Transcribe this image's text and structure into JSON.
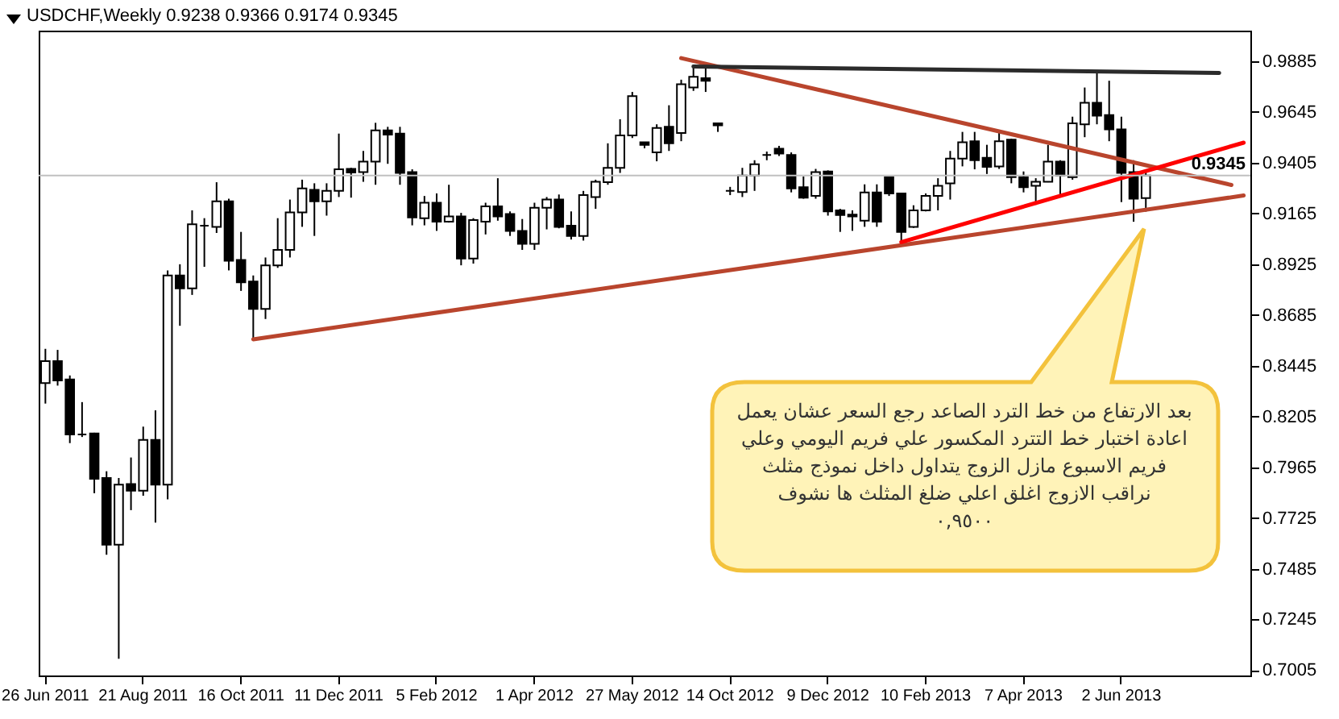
{
  "chart_data": {
    "type": "candlestick",
    "title": "USDCHF,Weekly  0.9238 0.9366 0.9174 0.9345",
    "categories": [
      "26 Jun 2011",
      null,
      null,
      null,
      null,
      null,
      null,
      null,
      "21 Aug 2011",
      null,
      null,
      null,
      null,
      null,
      null,
      null,
      "16 Oct 2011",
      null,
      null,
      null,
      null,
      null,
      null,
      null,
      "11 Dec 2011",
      null,
      null,
      null,
      null,
      null,
      null,
      null,
      "5 Feb 2012",
      null,
      null,
      null,
      null,
      null,
      null,
      null,
      "1 Apr 2012",
      null,
      null,
      null,
      null,
      null,
      null,
      null,
      "27 May 2012",
      null,
      null,
      null,
      null,
      null,
      null,
      null,
      "14 Oct 2012",
      null,
      null,
      null,
      null,
      null,
      null,
      null,
      "9 Dec 2012",
      null,
      null,
      null,
      null,
      null,
      null,
      null,
      "10 Feb 2013",
      null,
      null,
      null,
      null,
      null,
      null,
      null,
      "7 Apr 2013",
      null,
      null,
      null,
      null,
      null,
      null,
      null,
      "2 Jun 2013",
      null,
      null,
      null,
      null,
      null,
      null,
      null,
      null,
      null,
      null
    ],
    "ohlc": [
      [
        0.8363,
        0.8525,
        0.8266,
        0.8467
      ],
      [
        0.8467,
        0.852,
        0.8351,
        0.8375
      ],
      [
        0.838,
        0.8399,
        0.8079,
        0.812
      ],
      [
        0.812,
        0.8273,
        0.8108,
        0.812
      ],
      [
        0.8125,
        0.8128,
        0.7842,
        0.791
      ],
      [
        0.7914,
        0.7946,
        0.7551,
        0.7599
      ],
      [
        0.7599,
        0.7914,
        0.7059,
        0.7883
      ],
      [
        0.7885,
        0.8011,
        0.7762,
        0.7854
      ],
      [
        0.7854,
        0.8157,
        0.783,
        0.8094
      ],
      [
        0.8094,
        0.8234,
        0.7703,
        0.7883
      ],
      [
        0.7883,
        0.8896,
        0.7813,
        0.8872
      ],
      [
        0.8872,
        0.8925,
        0.8634,
        0.8811
      ],
      [
        0.8811,
        0.918,
        0.878,
        0.9114
      ],
      [
        0.9107,
        0.9143,
        0.8913,
        0.9107
      ],
      [
        0.9102,
        0.9313,
        0.9073,
        0.9223
      ],
      [
        0.9223,
        0.9235,
        0.8896,
        0.8942
      ],
      [
        0.8945,
        0.9078,
        0.8799,
        0.884
      ],
      [
        0.8843,
        0.8872,
        0.8569,
        0.8714
      ],
      [
        0.8714,
        0.8957,
        0.8666,
        0.892
      ],
      [
        0.892,
        0.9143,
        0.8908,
        0.8993
      ],
      [
        0.8993,
        0.9231,
        0.8957,
        0.917
      ],
      [
        0.917,
        0.9325,
        0.9102,
        0.9284
      ],
      [
        0.9277,
        0.9308,
        0.9059,
        0.9223
      ],
      [
        0.9223,
        0.9308,
        0.9155,
        0.9272
      ],
      [
        0.9272,
        0.9543,
        0.9243,
        0.9374
      ],
      [
        0.9376,
        0.9381,
        0.924,
        0.9359
      ],
      [
        0.9361,
        0.9461,
        0.9315,
        0.941
      ],
      [
        0.941,
        0.9594,
        0.9301,
        0.9558
      ],
      [
        0.9558,
        0.9575,
        0.94,
        0.9538
      ],
      [
        0.9543,
        0.9575,
        0.9301,
        0.9357
      ],
      [
        0.9361,
        0.9374,
        0.9109,
        0.9146
      ],
      [
        0.9143,
        0.9248,
        0.9109,
        0.9216
      ],
      [
        0.9216,
        0.926,
        0.9083,
        0.9126
      ],
      [
        0.9126,
        0.9301,
        0.9122,
        0.9151
      ],
      [
        0.9151,
        0.9168,
        0.892,
        0.8952
      ],
      [
        0.8952,
        0.9143,
        0.8928,
        0.9134
      ],
      [
        0.9126,
        0.9216,
        0.9066,
        0.9199
      ],
      [
        0.9199,
        0.9332,
        0.9131,
        0.9151
      ],
      [
        0.9163,
        0.9175,
        0.9059,
        0.9083
      ],
      [
        0.9083,
        0.9139,
        0.8993,
        0.9022
      ],
      [
        0.9022,
        0.9216,
        0.8993,
        0.9192
      ],
      [
        0.9192,
        0.9243,
        0.909,
        0.9231
      ],
      [
        0.9231,
        0.9255,
        0.9095,
        0.9102
      ],
      [
        0.9107,
        0.9175,
        0.9042,
        0.9059
      ],
      [
        0.9059,
        0.9272,
        0.9037,
        0.9252
      ],
      [
        0.9243,
        0.9325,
        0.9187,
        0.9315
      ],
      [
        0.9313,
        0.9497,
        0.9301,
        0.9381
      ],
      [
        0.9381,
        0.9611,
        0.9357,
        0.9534
      ],
      [
        0.9534,
        0.974,
        0.9522,
        0.972
      ],
      [
        0.9502,
        0.9503,
        0.9473,
        0.949
      ],
      [
        0.9454,
        0.9587,
        0.9412,
        0.957
      ],
      [
        0.9575,
        0.9677,
        0.9461,
        0.9497
      ],
      [
        0.9546,
        0.9798,
        0.9507,
        0.9776
      ],
      [
        0.9761,
        0.9866,
        0.9745,
        0.9812
      ],
      [
        0.9805,
        0.9858,
        0.974,
        0.9793
      ],
      [
        0.9592,
        0.9594,
        0.9551,
        0.9582
      ],
      [
        0.9272,
        0.9291,
        0.9252,
        0.9272
      ],
      [
        0.9267,
        0.9381,
        0.9243,
        0.9345
      ],
      [
        0.9345,
        0.9417,
        0.9272,
        0.9398
      ],
      [
        0.9442,
        0.9458,
        0.9417,
        0.9442
      ],
      [
        0.9471,
        0.9485,
        0.9437,
        0.9449
      ],
      [
        0.9442,
        0.9454,
        0.9265,
        0.9284
      ],
      [
        0.9289,
        0.934,
        0.9235,
        0.924
      ],
      [
        0.9248,
        0.9376,
        0.9235,
        0.9361
      ],
      [
        0.9364,
        0.9369,
        0.9155,
        0.9175
      ],
      [
        0.918,
        0.9187,
        0.9078,
        0.9158
      ],
      [
        0.916,
        0.918,
        0.9083,
        0.9151
      ],
      [
        0.9131,
        0.9303,
        0.9102,
        0.9265
      ],
      [
        0.9265,
        0.9303,
        0.9102,
        0.9126
      ],
      [
        0.9337,
        0.934,
        0.9248,
        0.926
      ],
      [
        0.926,
        0.9262,
        0.9022,
        0.9078
      ],
      [
        0.9102,
        0.9204,
        0.9097,
        0.918
      ],
      [
        0.918,
        0.926,
        0.9175,
        0.9248
      ],
      [
        0.9248,
        0.9332,
        0.918,
        0.9296
      ],
      [
        0.9308,
        0.9461,
        0.9231,
        0.9425
      ],
      [
        0.9425,
        0.9551,
        0.9388,
        0.9502
      ],
      [
        0.9507,
        0.9551,
        0.9374,
        0.9417
      ],
      [
        0.9429,
        0.949,
        0.9352,
        0.9386
      ],
      [
        0.9388,
        0.9551,
        0.9376,
        0.9507
      ],
      [
        0.9514,
        0.9519,
        0.9308,
        0.9337
      ],
      [
        0.9337,
        0.9364,
        0.9265,
        0.9289
      ],
      [
        0.9296,
        0.9332,
        0.9206,
        0.9315
      ],
      [
        0.9315,
        0.949,
        0.9313,
        0.941
      ],
      [
        0.941,
        0.9417,
        0.9248,
        0.9345
      ],
      [
        0.9337,
        0.9623,
        0.9325,
        0.9592
      ],
      [
        0.9587,
        0.9761,
        0.9526,
        0.9689
      ],
      [
        0.9689,
        0.9829,
        0.9587,
        0.9628
      ],
      [
        0.9631,
        0.9793,
        0.9507,
        0.9563
      ],
      [
        0.9563,
        0.9623,
        0.9219,
        0.9357
      ],
      [
        0.9361,
        0.9417,
        0.9126,
        0.9235
      ],
      [
        0.9238,
        0.9366,
        0.9174,
        0.9345
      ],
      null,
      null,
      null,
      null,
      null,
      null,
      null,
      null
    ],
    "series": [
      {
        "type": "line",
        "color": "#b9452d",
        "values": [
          null,
          null,
          null,
          null,
          null,
          null,
          null,
          null,
          null,
          null,
          null,
          null,
          null,
          null,
          null,
          null,
          null,
          0.857,
          null,
          null,
          null,
          null,
          null,
          null,
          null,
          null,
          null,
          null,
          null,
          null,
          null,
          null,
          null,
          null,
          null,
          null,
          null,
          null,
          null,
          null,
          null,
          null,
          null,
          null,
          null,
          null,
          null,
          null,
          null,
          null,
          null,
          null,
          null,
          null,
          null,
          null,
          null,
          null,
          null,
          null,
          null,
          null,
          null,
          null,
          null,
          null,
          null,
          null,
          null,
          null,
          null,
          null,
          null,
          null,
          null,
          null,
          null,
          null,
          null,
          null,
          null,
          null,
          null,
          null,
          null,
          null,
          null,
          null,
          null,
          null,
          null,
          null,
          null,
          null,
          null,
          null,
          null,
          null,
          0.925
        ]
      },
      {
        "type": "line",
        "color": "#b9452d",
        "values": [
          null,
          null,
          null,
          null,
          null,
          null,
          null,
          null,
          null,
          null,
          null,
          null,
          null,
          null,
          null,
          null,
          null,
          null,
          null,
          null,
          null,
          null,
          null,
          null,
          null,
          null,
          null,
          null,
          null,
          null,
          null,
          null,
          null,
          null,
          null,
          null,
          null,
          null,
          null,
          null,
          null,
          null,
          null,
          null,
          null,
          null,
          null,
          null,
          null,
          null,
          null,
          null,
          0.99,
          null,
          null,
          null,
          null,
          null,
          null,
          null,
          null,
          null,
          null,
          null,
          null,
          null,
          null,
          null,
          null,
          null,
          null,
          null,
          null,
          null,
          null,
          null,
          null,
          null,
          null,
          null,
          null,
          null,
          null,
          null,
          null,
          null,
          null,
          null,
          null,
          null,
          null,
          null,
          null,
          null,
          null,
          null,
          null,
          0.93,
          null
        ]
      },
      {
        "type": "line",
        "color": "#2b2b2b",
        "values": [
          null,
          null,
          null,
          null,
          null,
          null,
          null,
          null,
          null,
          null,
          null,
          null,
          null,
          null,
          null,
          null,
          null,
          null,
          null,
          null,
          null,
          null,
          null,
          null,
          null,
          null,
          null,
          null,
          null,
          null,
          null,
          null,
          null,
          null,
          null,
          null,
          null,
          null,
          null,
          null,
          null,
          null,
          null,
          null,
          null,
          null,
          null,
          null,
          null,
          null,
          null,
          null,
          null,
          0.986,
          null,
          null,
          null,
          null,
          null,
          null,
          null,
          null,
          null,
          null,
          null,
          null,
          null,
          null,
          null,
          null,
          null,
          null,
          null,
          null,
          null,
          null,
          null,
          null,
          null,
          null,
          null,
          null,
          null,
          null,
          null,
          null,
          null,
          null,
          null,
          null,
          null,
          null,
          null,
          null,
          null,
          null,
          0.983,
          null,
          null
        ]
      },
      {
        "type": "line",
        "color": "#ff0000",
        "values": [
          null,
          null,
          null,
          null,
          null,
          null,
          null,
          null,
          null,
          null,
          null,
          null,
          null,
          null,
          null,
          null,
          null,
          null,
          null,
          null,
          null,
          null,
          null,
          null,
          null,
          null,
          null,
          null,
          null,
          null,
          null,
          null,
          null,
          null,
          null,
          null,
          null,
          null,
          null,
          null,
          null,
          null,
          null,
          null,
          null,
          null,
          null,
          null,
          null,
          null,
          null,
          null,
          null,
          null,
          null,
          null,
          null,
          null,
          null,
          null,
          null,
          null,
          null,
          null,
          null,
          null,
          null,
          null,
          null,
          null,
          0.903,
          null,
          null,
          null,
          null,
          null,
          null,
          null,
          null,
          null,
          null,
          null,
          null,
          null,
          null,
          null,
          null,
          null,
          null,
          null,
          null,
          null,
          null,
          null,
          null,
          null,
          null,
          null,
          0.95
        ]
      }
    ],
    "ref_lines": [
      {
        "axis": "y",
        "value": 0.9345,
        "label": "0.9345",
        "color": "#c0c0c0"
      }
    ],
    "annotations": [
      "بعد الارتفاع من خط الترد الصاعد رجع السعر عشان يعمل\nاعادة اختبار خط التترد المكسور علي فريم اليومي  وعلي\nفريم الاسبوع مازل الزوج يتداول داخل نموذج مثلث\nنراقب الازوج اغلق اعلي ضلغ المثلث ها نشوف\n٠,٩٥٠٠"
    ],
    "ylim": [
      0.698,
      1.003
    ],
    "yticks": [
      0.7005,
      0.7245,
      0.7485,
      0.7725,
      0.7965,
      0.8205,
      0.8445,
      0.8685,
      0.8925,
      0.9165,
      0.9405,
      0.9645,
      0.9885
    ],
    "grid": false,
    "legend": false
  }
}
